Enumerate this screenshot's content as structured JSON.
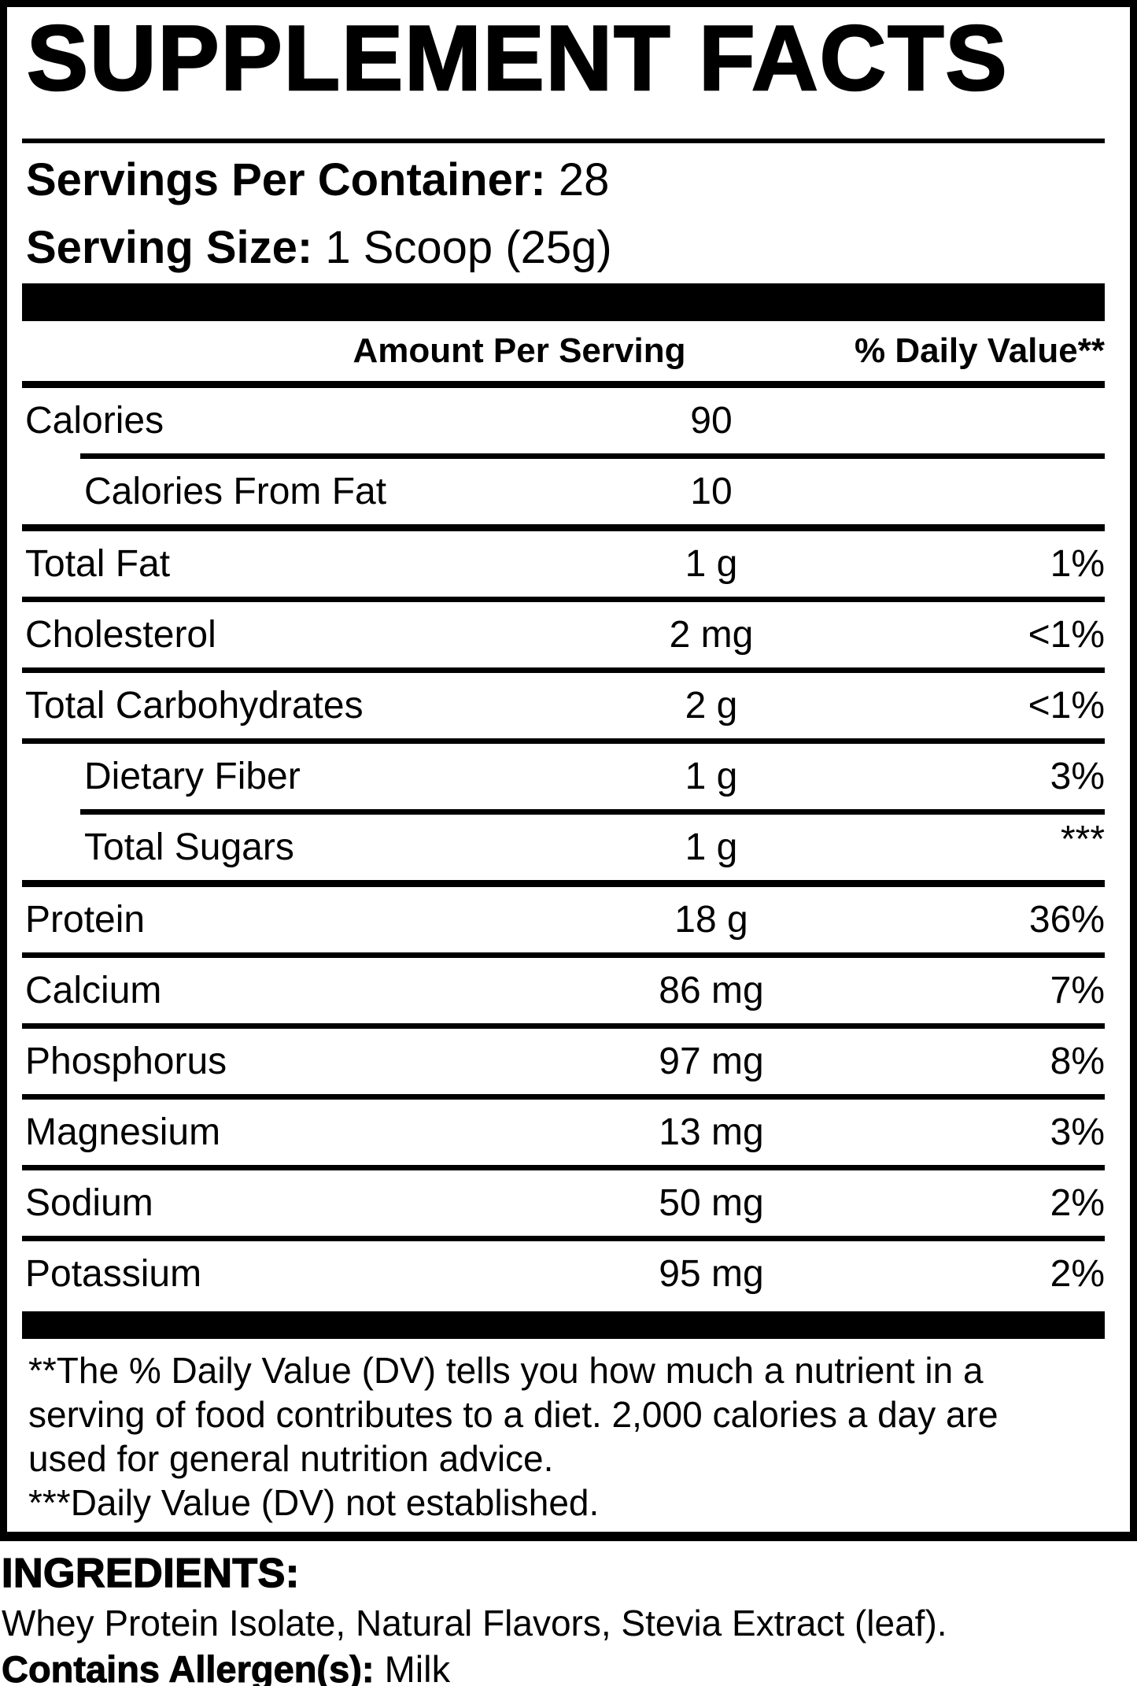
{
  "panel": {
    "title": "SUPPLEMENT FACTS",
    "servings_per_container_label": "Servings Per Container:",
    "servings_per_container_value": "28",
    "serving_size_label": "Serving Size:",
    "serving_size_value": "1 Scoop (25g)",
    "columns": {
      "amount_header": "Amount Per Serving",
      "daily_value_header": "% Daily Value**"
    },
    "rows": [
      {
        "name": "Calories",
        "amount": "90",
        "dv": "",
        "indent": false,
        "dv_raised": false,
        "divider": "indent"
      },
      {
        "name": "Calories From Fat",
        "amount": "10",
        "dv": "",
        "indent": true,
        "dv_raised": false,
        "divider": "thick"
      },
      {
        "name": "Total Fat",
        "amount": "1 g",
        "dv": "1%",
        "indent": false,
        "dv_raised": false,
        "divider": "thin"
      },
      {
        "name": "Cholesterol",
        "amount": "2 mg",
        "dv": "<1%",
        "indent": false,
        "dv_raised": false,
        "divider": "thin"
      },
      {
        "name": "Total Carbohydrates",
        "amount": "2 g",
        "dv": "<1%",
        "indent": false,
        "dv_raised": false,
        "divider": "thin"
      },
      {
        "name": "Dietary Fiber",
        "amount": "1 g",
        "dv": "3%",
        "indent": true,
        "dv_raised": false,
        "divider": "indent"
      },
      {
        "name": "Total Sugars",
        "amount": "1 g",
        "dv": "***",
        "indent": true,
        "dv_raised": true,
        "divider": "thick"
      },
      {
        "name": "Protein",
        "amount": "18 g",
        "dv": "36%",
        "indent": false,
        "dv_raised": false,
        "divider": "thin"
      },
      {
        "name": "Calcium",
        "amount": "86 mg",
        "dv": "7%",
        "indent": false,
        "dv_raised": false,
        "divider": "thin"
      },
      {
        "name": "Phosphorus",
        "amount": "97 mg",
        "dv": "8%",
        "indent": false,
        "dv_raised": false,
        "divider": "thin"
      },
      {
        "name": "Magnesium",
        "amount": "13 mg",
        "dv": "3%",
        "indent": false,
        "dv_raised": false,
        "divider": "thin"
      },
      {
        "name": "Sodium",
        "amount": "50 mg",
        "dv": "2%",
        "indent": false,
        "dv_raised": false,
        "divider": "thin"
      },
      {
        "name": "Potassium",
        "amount": "95 mg",
        "dv": "2%",
        "indent": false,
        "dv_raised": false,
        "divider": "none"
      }
    ],
    "footnotes": [
      "**The % Daily Value (DV) tells you how much a nutrient in a",
      "serving of food contributes to a diet. 2,000 calories a day are",
      "used for general nutrition advice.",
      "***Daily Value (DV) not established."
    ]
  },
  "ingredients": {
    "heading": "INGREDIENTS:",
    "list": "Whey Protein Isolate, Natural Flavors, Stevia Extract (leaf).",
    "allergen_label": "Contains Allergen(s):",
    "allergen_value": "Milk"
  },
  "colors": {
    "ink": "#000000",
    "background": "#ffffff"
  }
}
